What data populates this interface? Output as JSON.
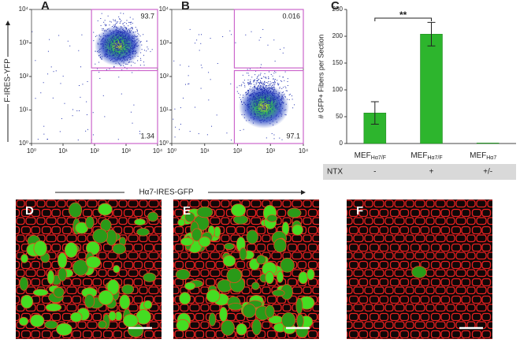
{
  "chart_data": [
    {
      "type": "flow",
      "panel": "A",
      "xlabel": "Hα7-IRES-GFP",
      "ylabel": "F-IRES-YFP",
      "log": true,
      "xlim": [
        1,
        10000
      ],
      "ylim": [
        1,
        10000
      ],
      "xticks": [
        {
          "value": 1,
          "label": "10⁰"
        },
        {
          "value": 10,
          "label": "10¹"
        },
        {
          "value": 100,
          "label": "10²"
        },
        {
          "value": 1000,
          "label": "10³"
        },
        {
          "value": 10000,
          "label": "10⁴"
        }
      ],
      "yticks": [
        {
          "value": 1,
          "label": "10⁰"
        },
        {
          "value": 10,
          "label": "10¹"
        },
        {
          "value": 100,
          "label": "10²"
        },
        {
          "value": 1000,
          "label": "10³"
        },
        {
          "value": 10000,
          "label": "10⁴"
        }
      ],
      "gates": [
        {
          "x": [
            80,
            10000
          ],
          "y": [
            180,
            10000
          ],
          "value": 93.7
        },
        {
          "x": [
            80,
            10000
          ],
          "y": [
            1,
            150
          ],
          "value": 1.34
        }
      ],
      "color": "#cc66cc"
    },
    {
      "type": "flow",
      "panel": "B",
      "log": true,
      "xlim": [
        1,
        10000
      ],
      "ylim": [
        1,
        10000
      ],
      "xticks": [
        {
          "value": 1,
          "label": "10⁰"
        },
        {
          "value": 10,
          "label": "10¹"
        },
        {
          "value": 100,
          "label": "10²"
        },
        {
          "value": 1000,
          "label": "10³"
        },
        {
          "value": 10000,
          "label": "10⁴"
        }
      ],
      "yticks": [
        {
          "value": 1,
          "label": "10⁰"
        },
        {
          "value": 10,
          "label": "10¹"
        },
        {
          "value": 100,
          "label": "10²"
        },
        {
          "value": 1000,
          "label": "10³"
        },
        {
          "value": 10000,
          "label": "10⁴"
        }
      ],
      "gates": [
        {
          "x": [
            80,
            10000
          ],
          "y": [
            180,
            10000
          ],
          "value": 0.016
        },
        {
          "x": [
            80,
            10000
          ],
          "y": [
            1,
            150
          ],
          "value": 97.1
        }
      ],
      "color": "#cc66cc"
    },
    {
      "type": "bar",
      "panel": "C",
      "ylabel": "# GFP+ Fibers per Section",
      "categories": [
        "MEF",
        "MEF",
        "MEF"
      ],
      "category_subscripts": [
        "Hα7/F",
        "Hα7/F",
        "Hα7"
      ],
      "values": [
        57,
        204,
        1
      ],
      "errors": [
        21,
        22,
        0
      ],
      "color": "#2db52d",
      "ylim": [
        0,
        250
      ],
      "yticks": [
        0,
        50,
        100,
        150,
        200,
        250
      ],
      "significance": {
        "label": "**",
        "between": [
          0,
          1
        ]
      },
      "treatment": {
        "label": "NTX",
        "values": [
          "-",
          "+",
          "+/-"
        ]
      }
    }
  ],
  "images": [
    {
      "panel": "D"
    },
    {
      "panel": "E"
    },
    {
      "panel": "F"
    }
  ]
}
